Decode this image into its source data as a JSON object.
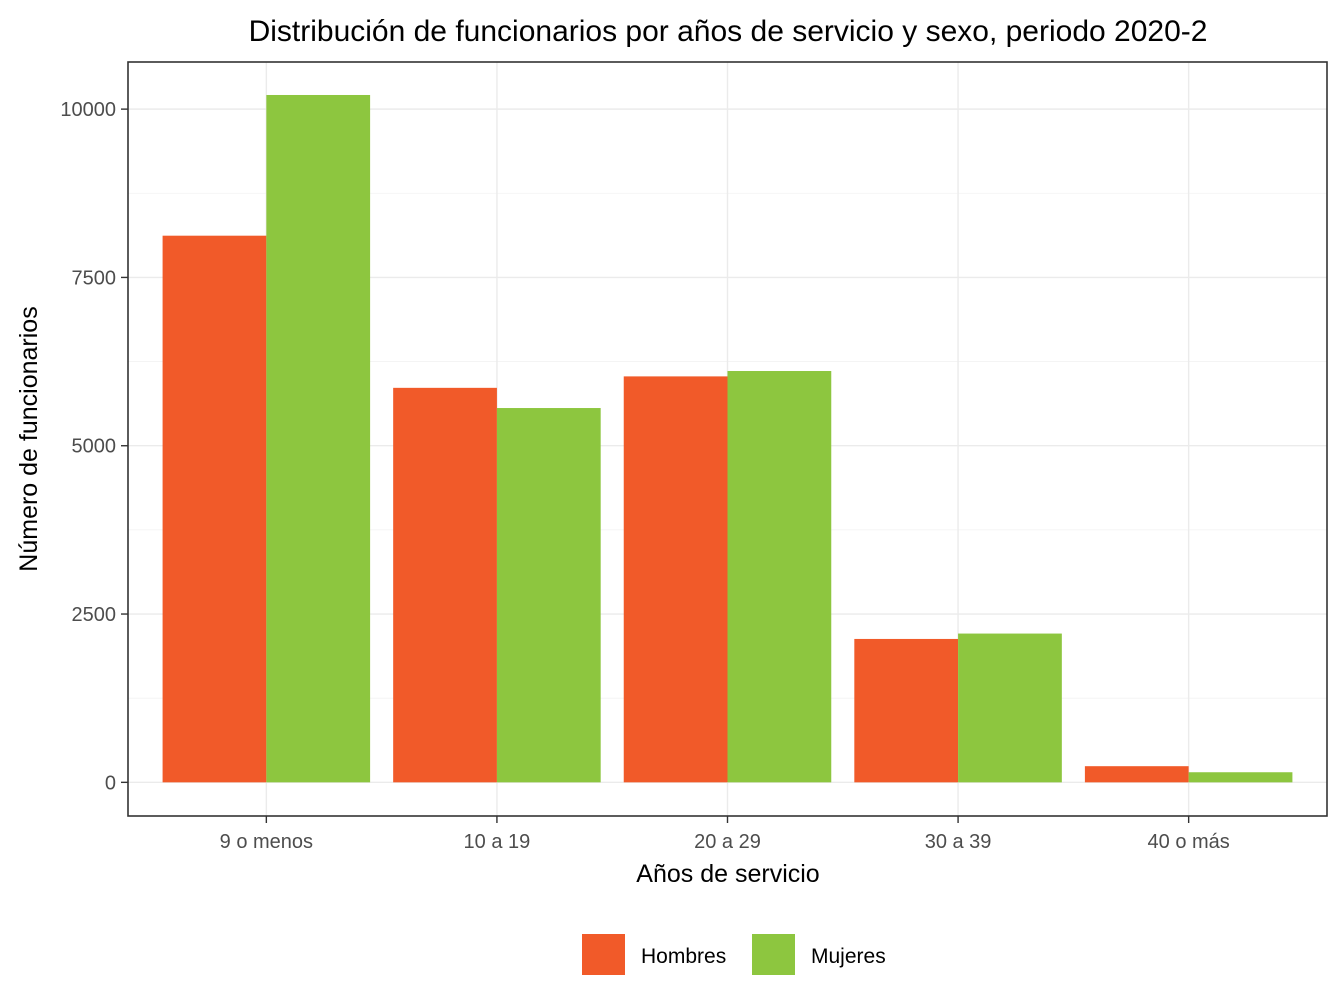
{
  "chart_data": {
    "type": "bar",
    "title": "Distribución de funcionarios por años de servicio y sexo, periodo 2020-2",
    "xlabel": "Años de servicio",
    "ylabel": "Número de funcionarios",
    "categories": [
      "9 o menos",
      "10 a 19",
      "20 a 29",
      "30 a 39",
      "40 o más"
    ],
    "series": [
      {
        "name": "Hombres",
        "color": "#f15a29",
        "values": [
          8120,
          5860,
          6030,
          2130,
          240
        ]
      },
      {
        "name": "Mujeres",
        "color": "#8dc63f",
        "values": [
          10210,
          5560,
          6110,
          2210,
          150
        ]
      }
    ],
    "yticks": [
      0,
      2500,
      5000,
      7500,
      10000
    ],
    "ylim": [
      -500,
      10700
    ],
    "grid": true,
    "legend_position": "bottom"
  }
}
